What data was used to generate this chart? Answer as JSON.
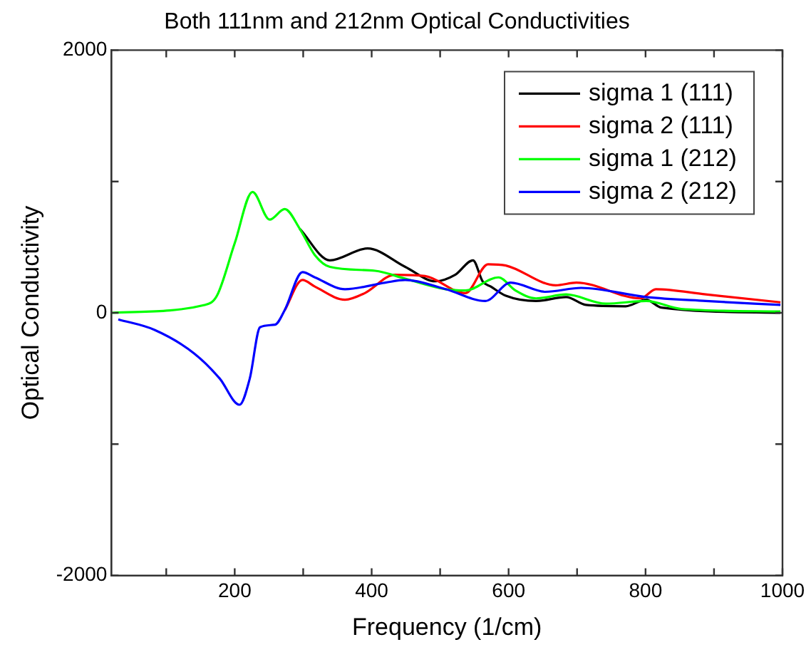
{
  "chart_data": {
    "type": "line",
    "title": "Both 111nm and 212nm Optical Conductivities",
    "xlabel": "Frequency (1/cm)",
    "ylabel": "Optical Conductivity",
    "xlim": [
      20,
      1000
    ],
    "xticks": [
      {
        "value": 100,
        "label": null
      },
      200,
      {
        "value": 300,
        "label": null
      },
      400,
      {
        "value": 500,
        "label": null
      },
      600,
      {
        "value": 700,
        "label": null
      },
      800,
      {
        "value": 900,
        "label": null
      },
      1000
    ],
    "ylim": [
      -2000,
      2000
    ],
    "yticks": [
      -2000,
      {
        "value": -1000,
        "label": null
      },
      0,
      {
        "value": 1000,
        "label": null
      },
      2000
    ],
    "grid": false,
    "legend": "top right",
    "marker": "none",
    "line_style": "solid",
    "series": [
      {
        "name": "sigma 1 (111)",
        "color": "#000000",
        "x": [
          295,
          339,
          394,
          449,
          493,
          522,
          548,
          562,
          574,
          596,
          640,
          684,
          713,
          771,
          801,
          823,
          997
        ],
        "values": [
          640,
          400,
          490,
          350,
          240,
          290,
          400,
          240,
          200,
          130,
          90,
          120,
          60,
          50,
          100,
          40,
          0
        ]
      },
      {
        "name": "sigma 2 (111)",
        "color": "#ff0000",
        "x": [
          273,
          299,
          317,
          361,
          390,
          434,
          478,
          537,
          570,
          596,
          669,
          699,
          793,
          815,
          888,
          997
        ],
        "values": [
          20,
          250,
          200,
          100,
          150,
          290,
          280,
          150,
          370,
          360,
          210,
          230,
          110,
          180,
          140,
          80
        ]
      },
      {
        "name": "sigma 1 (212)",
        "color": "#00ff00",
        "x": [
          21,
          156,
          174,
          200,
          226,
          251,
          273,
          295,
          317,
          339,
          405,
          449,
          508,
          537,
          585,
          610,
          640,
          684,
          742,
          801,
          852,
          997
        ],
        "values": [
          0,
          60,
          130,
          530,
          920,
          710,
          790,
          640,
          440,
          350,
          320,
          260,
          180,
          170,
          270,
          170,
          110,
          140,
          70,
          90,
          30,
          10
        ]
      },
      {
        "name": "sigma 2 (212)",
        "color": "#0000ff",
        "x": [
          30,
          83,
          141,
          178,
          207,
          222,
          237,
          259,
          273,
          299,
          317,
          361,
          420,
          449,
          508,
          566,
          603,
          654,
          706,
          801,
          888,
          997
        ],
        "values": [
          -50,
          -130,
          -310,
          -500,
          -700,
          -500,
          -110,
          -90,
          20,
          310,
          270,
          180,
          230,
          250,
          180,
          90,
          230,
          160,
          190,
          120,
          90,
          60
        ]
      }
    ]
  }
}
